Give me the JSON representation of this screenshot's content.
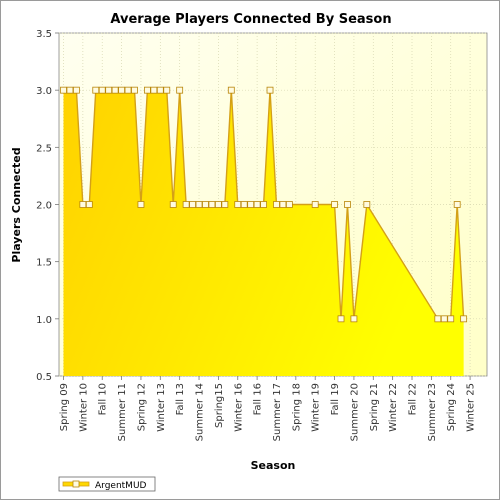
{
  "chart_data": {
    "type": "area",
    "title": "Average Players Connected By Season",
    "xlabel": "Season",
    "ylabel": "Players Connected",
    "ylim": [
      0.5,
      3.5
    ],
    "yticks": [
      "0.5",
      "1.0",
      "1.5",
      "2.0",
      "2.5",
      "3.0",
      "3.5"
    ],
    "grid": true,
    "legend_position": "bottom-left",
    "x_tick_labels": [
      "Spring 09",
      "Winter 10",
      "Fall 10",
      "Summer 11",
      "Spring 12",
      "Winter 13",
      "Fall 13",
      "Summer 14",
      "Spring15",
      "Winter 16",
      "Fall 16",
      "Summer 17",
      "Spring 18",
      "Winter 19",
      "Fall 19",
      "Summer 20",
      "Spring 21",
      "Winter 22",
      "Fall 22",
      "Summer 23",
      "Spring 24",
      "Winter 25"
    ],
    "x_tick_positions": [
      0,
      3,
      6,
      9,
      12,
      15,
      18,
      21,
      24,
      27,
      30,
      33,
      36,
      39,
      42,
      45,
      48,
      51,
      54,
      57,
      60,
      63
    ],
    "x_max": 65,
    "series": [
      {
        "name": "ArgentMUD",
        "color": "#ffd800",
        "line_color": "#d4a017",
        "points": [
          [
            0,
            3.0
          ],
          [
            1,
            3.0
          ],
          [
            2,
            3.0
          ],
          [
            3,
            2.0
          ],
          [
            4,
            2.0
          ],
          [
            5,
            3.0
          ],
          [
            6,
            3.0
          ],
          [
            7,
            3.0
          ],
          [
            8,
            3.0
          ],
          [
            9,
            3.0
          ],
          [
            10,
            3.0
          ],
          [
            11,
            3.0
          ],
          [
            12,
            2.0
          ],
          [
            13,
            3.0
          ],
          [
            14,
            3.0
          ],
          [
            15,
            3.0
          ],
          [
            16,
            3.0
          ],
          [
            17,
            2.0
          ],
          [
            18,
            3.0
          ],
          [
            19,
            2.0
          ],
          [
            20,
            2.0
          ],
          [
            21,
            2.0
          ],
          [
            22,
            2.0
          ],
          [
            23,
            2.0
          ],
          [
            24,
            2.0
          ],
          [
            25,
            2.0
          ],
          [
            26,
            3.0
          ],
          [
            27,
            2.0
          ],
          [
            28,
            2.0
          ],
          [
            29,
            2.0
          ],
          [
            30,
            2.0
          ],
          [
            31,
            2.0
          ],
          [
            32,
            3.0
          ],
          [
            33,
            2.0
          ],
          [
            34,
            2.0
          ],
          [
            35,
            2.0
          ],
          [
            39,
            2.0
          ],
          [
            42,
            2.0
          ],
          [
            43,
            1.0
          ],
          [
            44,
            2.0
          ],
          [
            45,
            1.0
          ],
          [
            47,
            2.0
          ],
          [
            58,
            1.0
          ],
          [
            59,
            1.0
          ],
          [
            60,
            1.0
          ],
          [
            61,
            2.0
          ],
          [
            62,
            1.0
          ]
        ]
      }
    ]
  }
}
